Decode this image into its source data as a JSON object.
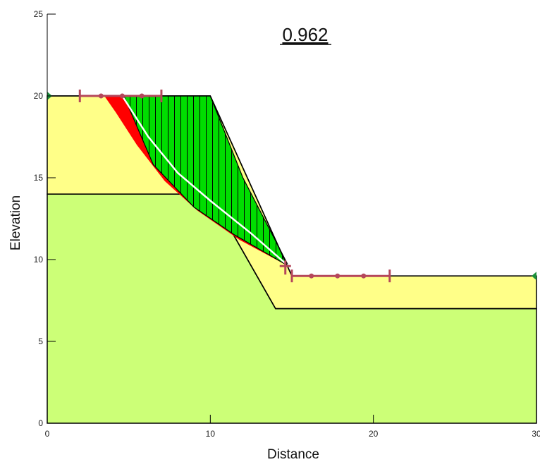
{
  "diagram": {
    "factor_of_safety": "0.962",
    "xlabel": "Distance",
    "ylabel": "Elevation",
    "x_ticks": [
      "0",
      "10",
      "20",
      "30"
    ],
    "x_tick_values": [
      0,
      10,
      20,
      30
    ],
    "y_ticks": [
      "0",
      "5",
      "10",
      "15",
      "20",
      "25"
    ],
    "y_tick_values": [
      0,
      5,
      10,
      15,
      20,
      25
    ],
    "xlim": [
      0,
      30
    ],
    "ylim": [
      0,
      25
    ],
    "colors": {
      "upper_layer": "#ffff88",
      "lower_layer": "#ccff77",
      "sliding_mass": "#00dd00",
      "critical_zone": "#ff0000",
      "entry_exit": "#b5475b",
      "water_marker": "#1a8f3a"
    },
    "upper_layer": [
      [
        0,
        20
      ],
      [
        10,
        20
      ],
      [
        15,
        9
      ],
      [
        30,
        9
      ],
      [
        30,
        7
      ],
      [
        14,
        7
      ],
      [
        10,
        14
      ],
      [
        0,
        14
      ]
    ],
    "lower_layer": [
      [
        0,
        14
      ],
      [
        10,
        14
      ],
      [
        14,
        7
      ],
      [
        30,
        7
      ],
      [
        30,
        0
      ],
      [
        0,
        0
      ]
    ],
    "boundary_line": [
      [
        0,
        14
      ],
      [
        10,
        14
      ],
      [
        14,
        7
      ],
      [
        30,
        7
      ]
    ],
    "sliding_mass_polygon": [
      [
        4.7,
        20
      ],
      [
        10,
        20
      ],
      [
        12,
        15
      ],
      [
        14.8,
        9.6
      ],
      [
        11.5,
        11.5
      ],
      [
        9,
        13.2
      ],
      [
        6.5,
        15.8
      ]
    ],
    "critical_band": [
      [
        3.5,
        20
      ],
      [
        4.6,
        20
      ],
      [
        5.5,
        18.5
      ],
      [
        7,
        16.5
      ],
      [
        9,
        14.3
      ],
      [
        11,
        12.6
      ],
      [
        14.6,
        9.7
      ],
      [
        11.8,
        11.2
      ],
      [
        9.2,
        13
      ],
      [
        7.2,
        14.8
      ],
      [
        5.5,
        17
      ],
      [
        4.2,
        19
      ]
    ],
    "slip_surface": [
      [
        4.6,
        20
      ],
      [
        6.2,
        17.5
      ],
      [
        8,
        15.3
      ],
      [
        10,
        13.6
      ],
      [
        12.5,
        11.6
      ],
      [
        14.8,
        9.6
      ]
    ],
    "entry_markers": {
      "y": 20,
      "x_start": 2,
      "x_end": 7,
      "points": [
        3.3,
        4.6,
        5.8
      ]
    },
    "exit_markers": {
      "y": 9,
      "x_start": 15,
      "x_end": 21,
      "points": [
        16.2,
        17.8,
        19.4
      ]
    },
    "exit_cross": [
      14.6,
      9.6
    ],
    "water_markers": [
      [
        0,
        20
      ],
      [
        30,
        9
      ]
    ]
  }
}
